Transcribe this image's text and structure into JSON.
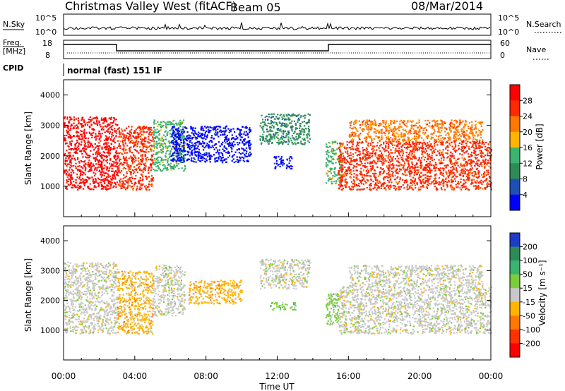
{
  "header": {
    "station": "Christmas Valley West (fitACF)",
    "beam": "Beam 05",
    "date": "08/Mar/2014"
  },
  "noise_panel": {
    "left_label": "N.Sky",
    "right_label": "N.Search",
    "left_ticks": [
      "10^5",
      "10^0"
    ],
    "right_ticks": [
      "10^5",
      "10^0"
    ]
  },
  "freq_panel": {
    "left_label_1": "Freq.",
    "left_label_2": "[MHz]",
    "right_label": "Nave",
    "left_ticks": [
      "18",
      "8"
    ],
    "right_ticks": [
      "60",
      "0"
    ]
  },
  "cpid": {
    "label": "CPID",
    "value": "normal (fast) 151 IF"
  },
  "chart_data": [
    {
      "type": "heatmap",
      "name": "power",
      "ylabel": "Slant Range [km]",
      "ylim": [
        0,
        4500
      ],
      "yticks": [
        "1000",
        "2000",
        "3000",
        "4000"
      ],
      "colorbar_label": "Power [dB]",
      "colorbar_ticks": [
        "4",
        "8",
        "12",
        "16",
        "20",
        "24",
        "28"
      ],
      "colors": [
        "#0000ff",
        "#1e50b4",
        "#2e8b57",
        "#3cb371",
        "#ffb400",
        "#ff7800",
        "#ff2800",
        "#ff0000"
      ],
      "regions": [
        {
          "t0": 0.0,
          "t1": 3.0,
          "r0": 900,
          "r1": 3300,
          "level": 7
        },
        {
          "t0": 3.0,
          "t1": 5.0,
          "r0": 900,
          "r1": 3000,
          "level": 6
        },
        {
          "t0": 5.0,
          "t1": 6.8,
          "r0": 1500,
          "r1": 3200,
          "level": 3
        },
        {
          "t0": 6.0,
          "t1": 10.5,
          "r0": 1800,
          "r1": 3000,
          "level": 0
        },
        {
          "t0": 11.0,
          "t1": 13.8,
          "r0": 2400,
          "r1": 3400,
          "level": 2
        },
        {
          "t0": 11.8,
          "t1": 12.8,
          "r0": 1600,
          "r1": 2000,
          "level": 0
        },
        {
          "t0": 14.7,
          "t1": 15.6,
          "r0": 1100,
          "r1": 2500,
          "level": 3
        },
        {
          "t0": 15.4,
          "t1": 24.0,
          "r0": 900,
          "r1": 2500,
          "level": 6
        },
        {
          "t0": 16.0,
          "t1": 23.5,
          "r0": 2500,
          "r1": 3200,
          "level": 5
        }
      ]
    },
    {
      "type": "heatmap",
      "name": "velocity",
      "ylabel": "Slant Range [km]",
      "ylim": [
        0,
        4500
      ],
      "yticks": [
        "1000",
        "2000",
        "3000",
        "4000"
      ],
      "colorbar_label": "Velocity [m s⁻¹]",
      "colorbar_ticks": [
        "200",
        "100",
        "50",
        "15",
        "-15",
        "-50",
        "-100",
        "-200"
      ],
      "colors": [
        "#1e3cc8",
        "#2e8b57",
        "#3cb371",
        "#7ccd3c",
        "#c8c8c8",
        "#ffb400",
        "#ff7800",
        "#ff3200",
        "#ff0000"
      ],
      "regions": [
        {
          "t0": 0.0,
          "t1": 3.0,
          "r0": 900,
          "r1": 3300,
          "level": 4
        },
        {
          "t0": 3.0,
          "t1": 5.0,
          "r0": 900,
          "r1": 3000,
          "level": 5
        },
        {
          "t0": 5.0,
          "t1": 6.8,
          "r0": 1500,
          "r1": 3200,
          "level": 4
        },
        {
          "t0": 7.0,
          "t1": 10.0,
          "r0": 1900,
          "r1": 2700,
          "level": 5
        },
        {
          "t0": 11.0,
          "t1": 13.8,
          "r0": 2400,
          "r1": 3400,
          "level": 4
        },
        {
          "t0": 11.5,
          "t1": 13.0,
          "r0": 1700,
          "r1": 1950,
          "level": 3
        },
        {
          "t0": 14.7,
          "t1": 15.4,
          "r0": 1200,
          "r1": 2300,
          "level": 3
        },
        {
          "t0": 15.4,
          "t1": 24.0,
          "r0": 900,
          "r1": 2500,
          "level": 4
        },
        {
          "t0": 16.0,
          "t1": 23.5,
          "r0": 2500,
          "r1": 3200,
          "level": 4
        }
      ]
    }
  ],
  "x_axis": {
    "label": "Time UT",
    "xlim": [
      0,
      24
    ],
    "ticks": [
      "00:00",
      "04:00",
      "08:00",
      "12:00",
      "16:00",
      "20:00",
      "00:00"
    ]
  }
}
